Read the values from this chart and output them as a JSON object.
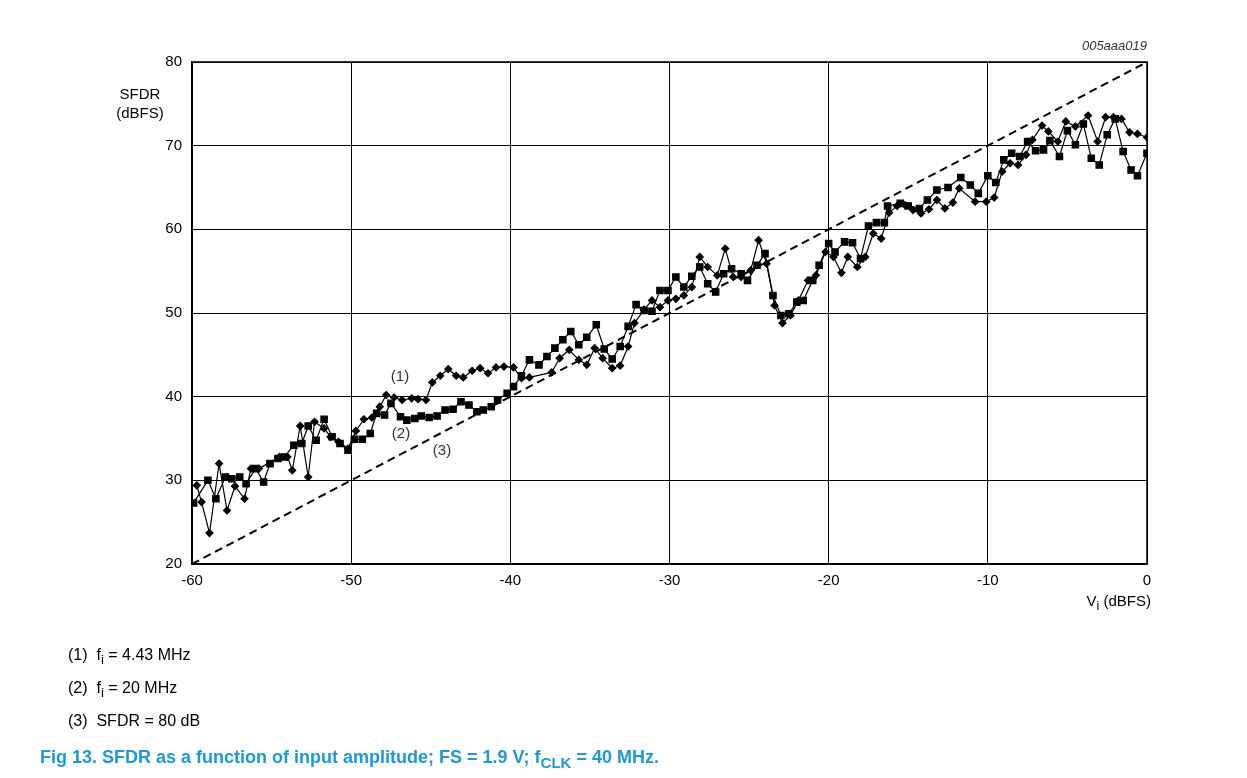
{
  "chart_data": {
    "type": "line",
    "title": "Fig 13. SFDR as a function of input amplitude; FS = 1.9 V; f$_{CLK}$ = 40 MHz.",
    "xlabel": "V$_{i}$ (dBFS)",
    "ylabel": "SFDR (dBFS)",
    "xlim": [
      -60,
      0
    ],
    "xticks": [
      -60,
      -50,
      -40,
      -30,
      -20,
      -10,
      0
    ],
    "ylim": [
      20,
      80
    ],
    "yticks": [
      20,
      30,
      40,
      50,
      60,
      70,
      80
    ],
    "grid": true,
    "legend": false,
    "series": [
      {
        "color": "#000000",
        "marker": "diamond",
        "line_style": "solid",
        "x": [
          -59.7,
          -59.4,
          -58.9,
          -58.3,
          -57.8,
          -57.3,
          -56.7,
          -56.3,
          -55.8,
          -54.5,
          -54.0,
          -53.7,
          -53.2,
          -52.7,
          -52.3,
          -51.7,
          -51.3,
          -50.8,
          -50.2,
          -49.7,
          -49.2,
          -48.7,
          -48.2,
          -47.8,
          -47.3,
          -46.8,
          -46.2,
          -45.8,
          -45.3,
          -44.9,
          -44.4,
          -43.9,
          -43.4,
          -42.96,
          -42.4,
          -41.9,
          -41.4,
          -40.9,
          -40.4,
          -39.8,
          -39.3,
          -38.8,
          -37.4,
          -36.9,
          -36.3,
          -35.7,
          -35.2,
          -34.7,
          -34.2,
          -33.6,
          -33.1,
          -32.6,
          -32.2,
          -31.6,
          -31.1,
          -30.6,
          -30.1,
          -29.6,
          -29.1,
          -28.6,
          -28.1,
          -27.6,
          -27.0,
          -26.5,
          -26.0,
          -25.5,
          -24.9,
          -24.4,
          -23.9,
          -23.4,
          -22.9,
          -22.4,
          -21.9,
          -21.3,
          -20.8,
          -20.2,
          -19.7,
          -19.2,
          -18.8,
          -18.2,
          -17.7,
          -17.2,
          -16.7,
          -16.2,
          -15.7,
          -15.2,
          -14.7,
          -14.2,
          -13.7,
          -13.2,
          -12.7,
          -12.2,
          -11.8,
          -10.8,
          -10.1,
          -9.6,
          -9.1,
          -8.6,
          -8.1,
          -7.6,
          -7.2,
          -6.6,
          -6.2,
          -5.6,
          -5.1,
          -4.5,
          -3.7,
          -3.1,
          -2.6,
          -2.1,
          -1.6,
          -1.1,
          -0.6,
          0
        ],
        "values": [
          29.4,
          27.4,
          23.7,
          32.0,
          26.4,
          29.3,
          27.8,
          31.4,
          31.4,
          32.8,
          32.8,
          31.2,
          36.5,
          30.4,
          37.0,
          36.2,
          35.2,
          34.6,
          33.8,
          35.9,
          37.3,
          37.5,
          38.8,
          40.2,
          39.9,
          39.6,
          39.8,
          39.7,
          39.6,
          41.7,
          42.5,
          43.3,
          42.5,
          42.3,
          43.1,
          43.4,
          42.8,
          43.5,
          43.6,
          43.5,
          42.2,
          42.3,
          42.9,
          44.6,
          45.6,
          44.4,
          43.8,
          45.8,
          44.6,
          43.4,
          43.7,
          46.0,
          48.8,
          50.4,
          51.5,
          50.7,
          51.5,
          51.7,
          52.1,
          53.1,
          56.7,
          55.5,
          54.5,
          57.7,
          54.3,
          54.3,
          55.1,
          58.7,
          55.9,
          50.9,
          48.8,
          49.7,
          51.5,
          53.9,
          54.5,
          57.3,
          56.7,
          54.8,
          56.7,
          55.5,
          56.7,
          59.5,
          58.9,
          62.0,
          62.8,
          62.9,
          62.3,
          61.9,
          62.4,
          63.5,
          62.5,
          63.2,
          64.9,
          63.3,
          63.3,
          63.8,
          66.9,
          67.9,
          67.7,
          68.9,
          70.7,
          72.4,
          71.7,
          70.5,
          72.9,
          72.3,
          73.6,
          70.5,
          73.4,
          73.4,
          73.2,
          71.6,
          71.4,
          71.0
        ]
      },
      {
        "color": "#000000",
        "marker": "square",
        "line_style": "solid",
        "x": [
          -59.9,
          -59.0,
          -58.5,
          -57.9,
          -57.5,
          -57.0,
          -56.6,
          -56.0,
          -55.5,
          -55.1,
          -54.6,
          -54.2,
          -53.6,
          -53.1,
          -52.7,
          -52.2,
          -51.7,
          -51.2,
          -50.7,
          -50.2,
          -49.8,
          -49.3,
          -48.8,
          -48.4,
          -47.9,
          -47.5,
          -46.9,
          -46.5,
          -46.0,
          -45.6,
          -45.1,
          -44.6,
          -44.1,
          -43.6,
          -43.1,
          -42.6,
          -42.1,
          -41.7,
          -41.2,
          -40.8,
          -40.2,
          -39.8,
          -39.3,
          -38.8,
          -38.2,
          -37.7,
          -37.2,
          -36.7,
          -36.2,
          -35.7,
          -35.2,
          -34.6,
          -34.1,
          -33.6,
          -33.1,
          -32.6,
          -32.1,
          -31.6,
          -31.1,
          -30.6,
          -30.1,
          -29.6,
          -29.1,
          -28.6,
          -28.1,
          -27.6,
          -27.1,
          -26.6,
          -26.1,
          -25.5,
          -25.1,
          -24.5,
          -24.0,
          -23.5,
          -23.0,
          -22.5,
          -22.0,
          -21.6,
          -21.0,
          -20.6,
          -20.0,
          -19.6,
          -19.0,
          -18.5,
          -18.0,
          -17.5,
          -17.0,
          -16.5,
          -16.3,
          -15.5,
          -15.0,
          -14.3,
          -13.8,
          -13.2,
          -12.5,
          -11.7,
          -11.1,
          -10.6,
          -10.0,
          -9.5,
          -9.0,
          -8.5,
          -8.0,
          -7.5,
          -7.0,
          -6.5,
          -6.1,
          -5.5,
          -5.0,
          -4.5,
          -4.0,
          -3.5,
          -3.0,
          -2.5,
          -2.0,
          -1.5,
          -1.0,
          -0.6,
          0
        ],
        "values": [
          27.3,
          30.0,
          27.8,
          30.4,
          30.2,
          30.4,
          29.6,
          31.4,
          29.8,
          32.0,
          32.6,
          32.8,
          34.2,
          34.4,
          36.5,
          34.8,
          37.3,
          35.2,
          34.4,
          33.6,
          34.9,
          34.9,
          35.6,
          38.0,
          37.8,
          39.2,
          37.6,
          37.2,
          37.4,
          37.7,
          37.5,
          37.7,
          38.4,
          38.5,
          39.4,
          39.0,
          38.2,
          38.4,
          38.8,
          39.6,
          40.4,
          41.2,
          42.5,
          44.4,
          43.8,
          44.8,
          45.8,
          46.8,
          47.8,
          46.2,
          47.1,
          48.6,
          45.7,
          44.5,
          46.0,
          48.4,
          51.0,
          50.3,
          50.2,
          52.7,
          52.7,
          54.3,
          53.1,
          54.4,
          55.5,
          53.5,
          52.5,
          54.7,
          55.3,
          54.7,
          53.9,
          55.7,
          57.1,
          52.1,
          49.7,
          49.9,
          51.3,
          51.5,
          53.9,
          55.7,
          58.3,
          57.3,
          58.5,
          58.4,
          56.5,
          60.4,
          60.8,
          60.8,
          62.8,
          63.1,
          62.8,
          62.5,
          63.5,
          64.7,
          65.0,
          66.2,
          65.3,
          64.3,
          66.4,
          65.6,
          68.3,
          69.1,
          68.7,
          70.5,
          69.4,
          69.5,
          70.6,
          68.7,
          71.8,
          70.1,
          72.6,
          68.5,
          67.7,
          71.3,
          73.2,
          69.3,
          67.1,
          66.4,
          69.1
        ]
      },
      {
        "color": "#000000",
        "marker": "none",
        "line_style": "dashed",
        "x": [
          -60,
          0
        ],
        "values": [
          20,
          80
        ]
      }
    ],
    "annotations": [
      "(1)",
      "(2)",
      "(3)",
      "005aaa019",
      "(1)  f$_{i}$ = 4.43 MHz",
      "(2)  f$_{i}$ = 20 MHz",
      "(3)  SFDR = 80 dB"
    ]
  }
}
